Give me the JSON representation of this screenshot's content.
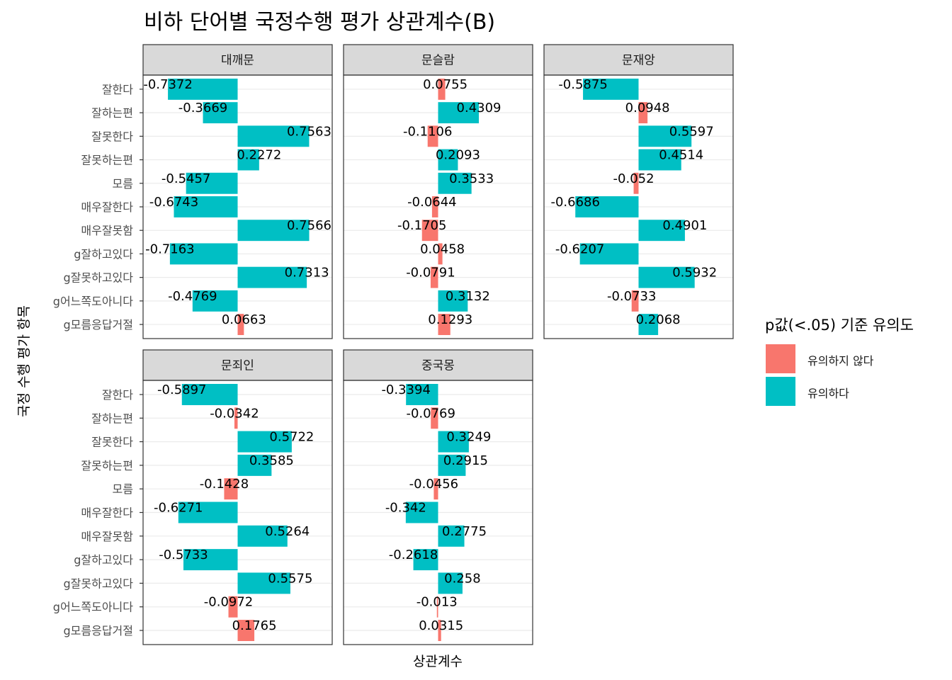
{
  "chart_data": {
    "type": "bar",
    "title": "비하 단어별 국정수행 평가 상관계수(B)",
    "xlabel": "상관계수",
    "ylabel": "국정 수행 평가 항목",
    "categories": [
      "잘한다",
      "잘하는편",
      "잘못한다",
      "잘못하는편",
      "모름",
      "매우잘한다",
      "매우잘못함",
      "g잘하고있다",
      "g잘못하고있다",
      "g어느쪽도아니다",
      "g모름응답거절"
    ],
    "xlim": [
      -1.0,
      1.0
    ],
    "legend": {
      "title": "p값(<.05) 기준 유의도",
      "position": "right",
      "items": [
        {
          "key": "ns",
          "label": "유의하지 않다",
          "color": "#F8766D"
        },
        {
          "key": "sig",
          "label": "유의하다",
          "color": "#00BFC4"
        }
      ]
    },
    "panels": [
      {
        "name": "대깨문",
        "values": [
          -0.7372,
          -0.3669,
          0.7563,
          0.2272,
          -0.5457,
          -0.6743,
          0.7566,
          -0.7163,
          0.7313,
          -0.4769,
          0.0663
        ],
        "labels": [
          "-0.7372",
          "-0.3669",
          "0.7563",
          "0.2272",
          "-0.5457",
          "-0.6743",
          "0.7566",
          "-0.7163",
          "0.7313",
          "-0.4769",
          "0.0663"
        ],
        "significant": [
          true,
          true,
          true,
          true,
          true,
          true,
          true,
          true,
          true,
          true,
          false
        ]
      },
      {
        "name": "문슬람",
        "values": [
          0.0755,
          0.4309,
          -0.1106,
          0.2093,
          0.3533,
          -0.0644,
          -0.1705,
          0.0458,
          -0.0791,
          0.3132,
          0.1293
        ],
        "labels": [
          "0.0755",
          "0.4309",
          "-0.1106",
          "0.2093",
          "0.3533",
          "-0.0644",
          "-0.1705",
          "0.0458",
          "-0.0791",
          "0.3132",
          "0.1293"
        ],
        "significant": [
          false,
          true,
          false,
          true,
          true,
          false,
          false,
          false,
          false,
          true,
          false
        ]
      },
      {
        "name": "문재앙",
        "values": [
          -0.5875,
          0.0948,
          0.5597,
          0.4514,
          -0.052,
          -0.6686,
          0.4901,
          -0.6207,
          0.5932,
          -0.0733,
          0.2068
        ],
        "labels": [
          "-0.5875",
          "0.0948",
          "0.5597",
          "0.4514",
          "-0.052",
          "-0.6686",
          "0.4901",
          "-0.6207",
          "0.5932",
          "-0.0733",
          "0.2068"
        ],
        "significant": [
          true,
          false,
          true,
          true,
          false,
          true,
          true,
          true,
          true,
          false,
          true
        ]
      },
      {
        "name": "문죄인",
        "values": [
          -0.5897,
          -0.0342,
          0.5722,
          0.3585,
          -0.1428,
          -0.6271,
          0.5264,
          -0.5733,
          0.5575,
          -0.0972,
          0.1765
        ],
        "labels": [
          "-0.5897",
          "-0.0342",
          "0.5722",
          "0.3585",
          "-0.1428",
          "-0.6271",
          "0.5264",
          "-0.5733",
          "0.5575",
          "-0.0972",
          "0.1765"
        ],
        "significant": [
          true,
          false,
          true,
          true,
          false,
          true,
          true,
          true,
          true,
          false,
          false
        ]
      },
      {
        "name": "중국몽",
        "values": [
          -0.3394,
          -0.0769,
          0.3249,
          0.2915,
          -0.0456,
          -0.342,
          0.2775,
          -0.2618,
          0.258,
          -0.013,
          0.0315
        ],
        "labels": [
          "-0.3394",
          "-0.0769",
          "0.3249",
          "0.2915",
          "-0.0456",
          "-0.342",
          "0.2775",
          "-0.2618",
          "0.258",
          "-0.013",
          "0.0315"
        ],
        "significant": [
          true,
          false,
          true,
          true,
          false,
          true,
          true,
          true,
          true,
          false,
          false
        ]
      }
    ]
  }
}
